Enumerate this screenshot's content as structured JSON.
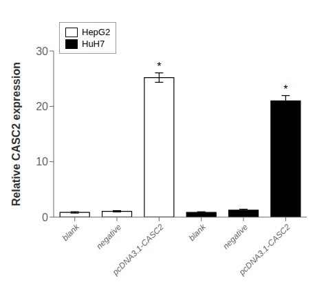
{
  "chart_data": {
    "type": "bar",
    "categories": [
      "blank",
      "negative",
      "pcDNA3.1-CASC2",
      "blank",
      "negative",
      "pcDNA3.1-CASC2"
    ],
    "series": [
      {
        "name": "HepG2",
        "color": "#ffffff",
        "values": [
          0.85,
          1.05,
          25.2,
          null,
          null,
          null
        ],
        "errors": [
          0.12,
          0.12,
          0.85,
          null,
          null,
          null
        ]
      },
      {
        "name": "HuH7",
        "color": "#000000",
        "values": [
          null,
          null,
          null,
          0.85,
          1.25,
          21.0
        ],
        "errors": [
          null,
          null,
          null,
          0.12,
          0.18,
          0.95
        ]
      }
    ],
    "ylabel": "Relative CASC2 expression",
    "ylim": [
      0,
      30
    ],
    "yticks": [
      0,
      10,
      20,
      30
    ],
    "legend": "upper left",
    "grid": false,
    "annotations": [
      {
        "text": "*",
        "index": 2
      },
      {
        "text": "*",
        "index": 5
      }
    ]
  }
}
